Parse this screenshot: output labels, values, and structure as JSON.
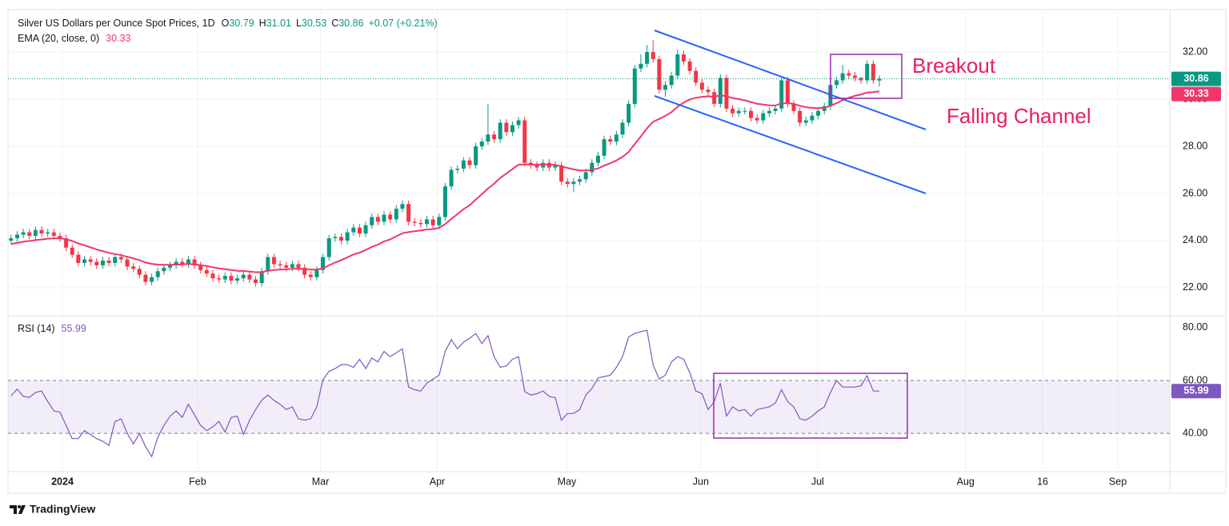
{
  "chart_data": {
    "type": "candlestick",
    "title": "Silver US Dollars per Ounce Spot Prices, 1D",
    "ohlc_letters": [
      "O",
      "H",
      "L",
      "C"
    ],
    "change": "+0.07 (+0.21%)",
    "up_color": "#089981",
    "down_color": "#f23645",
    "grid": true,
    "xlim": [
      -0.5,
      189.5
    ],
    "xticks": [
      {
        "value": 8.4,
        "label": "2024"
      },
      {
        "value": 30.5,
        "label": "Feb"
      },
      {
        "value": 50.6,
        "label": "Mar"
      },
      {
        "value": 69.7,
        "label": "Apr"
      },
      {
        "value": 90.9,
        "label": "May"
      },
      {
        "value": 112.8,
        "label": "Jun"
      },
      {
        "value": 131.9,
        "label": "Jul"
      },
      {
        "value": 156.1,
        "label": "Aug"
      },
      {
        "value": 168.7,
        "label": "16"
      },
      {
        "value": 181,
        "label": "Sep"
      }
    ],
    "ylim": [
      20.81,
      33.8
    ],
    "yticks": [
      {
        "value": 22,
        "label": "22.00"
      },
      {
        "value": 24,
        "label": "24.00"
      },
      {
        "value": 26,
        "label": "26.00"
      },
      {
        "value": 28,
        "label": "28.00"
      },
      {
        "value": 30,
        "label": "30.00"
      },
      {
        "value": 32,
        "label": "32.00"
      }
    ],
    "open": [
      24.0,
      24.1,
      24.25,
      24.35,
      24.2,
      24.45,
      24.3,
      24.35,
      24.2,
      24.1,
      23.7,
      23.4,
      23.05,
      23.2,
      23.1,
      22.95,
      23.15,
      23.05,
      23.3,
      23.2,
      22.9,
      22.8,
      22.55,
      22.25,
      22.45,
      22.7,
      22.85,
      22.95,
      23.1,
      23.0,
      23.2,
      22.95,
      22.75,
      22.6,
      22.4,
      22.35,
      22.5,
      22.3,
      22.4,
      22.55,
      22.35,
      22.2,
      22.7,
      23.3,
      23.0,
      22.95,
      22.85,
      23.0,
      22.85,
      22.55,
      22.45,
      22.75,
      23.3,
      24.1,
      24.15,
      24.0,
      24.35,
      24.55,
      24.3,
      24.65,
      25.0,
      24.8,
      25.1,
      24.9,
      25.35,
      25.55,
      24.8,
      24.75,
      24.7,
      24.9,
      24.65,
      25.0,
      26.3,
      27.0,
      27.05,
      27.4,
      27.2,
      28.0,
      28.2,
      28.5,
      28.3,
      29.0,
      28.6,
      28.9,
      29.1,
      27.3,
      27.2,
      27.1,
      27.3,
      27.1,
      27.2,
      26.5,
      26.4,
      26.5,
      26.6,
      26.9,
      27.3,
      27.6,
      28.3,
      28.2,
      28.5,
      29.0,
      29.8,
      31.3,
      31.5,
      32.0,
      31.7,
      30.4,
      30.6,
      31.0,
      31.9,
      31.6,
      31.2,
      30.7,
      30.4,
      30.3,
      29.8,
      30.9,
      29.6,
      29.4,
      29.5,
      29.5,
      29.2,
      29.1,
      29.4,
      29.5,
      29.6,
      30.8,
      29.8,
      29.5,
      29.0,
      29.1,
      29.3,
      29.5,
      29.7,
      30.6,
      30.8,
      31.1,
      31.0,
      30.9,
      30.8,
      31.5,
      30.79
    ],
    "high": [
      24.25,
      24.4,
      24.5,
      24.5,
      24.6,
      24.6,
      24.5,
      24.5,
      24.35,
      24.25,
      23.85,
      23.55,
      23.35,
      23.35,
      23.25,
      23.3,
      23.3,
      23.45,
      23.45,
      23.35,
      23.05,
      22.95,
      22.7,
      22.6,
      22.85,
      23.0,
      23.1,
      23.25,
      23.25,
      23.35,
      23.35,
      23.1,
      22.9,
      22.75,
      22.55,
      22.65,
      22.65,
      22.55,
      22.7,
      22.7,
      22.5,
      22.85,
      23.45,
      23.45,
      23.15,
      23.1,
      23.15,
      23.15,
      23.0,
      22.7,
      22.9,
      23.45,
      24.25,
      24.3,
      24.3,
      24.5,
      24.7,
      24.7,
      24.8,
      25.15,
      25.15,
      25.25,
      25.25,
      25.5,
      25.7,
      25.7,
      24.95,
      24.9,
      25.05,
      25.05,
      25.15,
      26.45,
      27.15,
      27.2,
      27.55,
      27.55,
      28.15,
      28.35,
      29.8,
      28.65,
      29.15,
      29.15,
      29.05,
      29.25,
      29.25,
      27.45,
      27.35,
      27.45,
      27.45,
      27.35,
      27.35,
      26.65,
      26.65,
      26.75,
      27.05,
      27.45,
      27.75,
      28.45,
      28.45,
      28.65,
      29.15,
      29.95,
      31.45,
      31.9,
      32.3,
      32.5,
      31.85,
      30.75,
      31.15,
      32.1,
      32.05,
      31.75,
      31.35,
      30.85,
      30.55,
      30.45,
      31.05,
      31.05,
      29.75,
      29.65,
      29.65,
      29.65,
      29.35,
      29.55,
      29.65,
      29.75,
      30.95,
      30.95,
      29.95,
      29.65,
      29.25,
      29.45,
      29.65,
      29.85,
      30.75,
      30.95,
      31.45,
      31.25,
      31.15,
      30.95,
      31.65,
      31.65,
      31.01
    ],
    "low": [
      23.85,
      23.95,
      24.1,
      24.05,
      24.05,
      24.15,
      24.15,
      24.05,
      23.95,
      23.55,
      23.25,
      22.9,
      22.9,
      22.95,
      22.8,
      22.8,
      22.9,
      22.9,
      23.05,
      22.75,
      22.65,
      22.4,
      22.1,
      22.1,
      22.3,
      22.55,
      22.7,
      22.8,
      22.85,
      22.85,
      22.8,
      22.6,
      22.45,
      22.25,
      22.2,
      22.2,
      22.15,
      22.15,
      22.25,
      22.2,
      22.05,
      22.05,
      22.55,
      22.85,
      22.8,
      22.7,
      22.7,
      22.7,
      22.4,
      22.3,
      22.3,
      22.6,
      23.15,
      23.95,
      23.85,
      23.85,
      24.2,
      24.15,
      24.15,
      24.5,
      24.65,
      24.65,
      24.75,
      24.75,
      25.2,
      24.65,
      24.6,
      24.55,
      24.55,
      24.5,
      24.5,
      24.85,
      26.15,
      26.85,
      26.9,
      27.05,
      27.05,
      27.85,
      28.05,
      28.15,
      28.15,
      28.45,
      28.45,
      28.75,
      27.15,
      27.05,
      26.95,
      26.95,
      26.95,
      26.95,
      26.35,
      26.25,
      26.05,
      26.35,
      26.45,
      26.75,
      27.15,
      27.45,
      28.05,
      28.05,
      28.35,
      28.85,
      29.65,
      31.15,
      31.35,
      31.55,
      30.25,
      30.1,
      30.45,
      30.85,
      31.45,
      31.05,
      30.55,
      30.25,
      30.15,
      29.65,
      29.65,
      29.45,
      29.25,
      29.25,
      29.35,
      29.05,
      28.95,
      28.95,
      29.25,
      29.35,
      29.45,
      29.65,
      29.35,
      28.85,
      28.85,
      28.95,
      29.15,
      29.35,
      29.55,
      30.45,
      30.65,
      30.85,
      30.75,
      30.65,
      30.65,
      30.65,
      30.53
    ],
    "close": [
      24.1,
      24.25,
      24.35,
      24.2,
      24.45,
      24.3,
      24.35,
      24.2,
      24.1,
      23.7,
      23.4,
      23.05,
      23.2,
      23.1,
      22.95,
      23.15,
      23.05,
      23.3,
      23.2,
      22.9,
      22.8,
      22.55,
      22.25,
      22.45,
      22.7,
      22.85,
      22.95,
      23.1,
      23.0,
      23.2,
      22.95,
      22.75,
      22.6,
      22.4,
      22.35,
      22.5,
      22.3,
      22.4,
      22.55,
      22.35,
      22.2,
      22.7,
      23.3,
      23.0,
      22.95,
      22.85,
      23.0,
      22.85,
      22.55,
      22.45,
      22.75,
      23.3,
      24.1,
      24.15,
      24.0,
      24.35,
      24.55,
      24.3,
      24.65,
      25.0,
      24.8,
      25.1,
      24.9,
      25.35,
      25.55,
      24.8,
      24.75,
      24.7,
      24.9,
      24.65,
      25.0,
      26.3,
      27.0,
      27.05,
      27.4,
      27.2,
      28.0,
      28.2,
      28.5,
      28.3,
      29.0,
      28.6,
      28.9,
      29.1,
      27.3,
      27.2,
      27.1,
      27.3,
      27.1,
      27.2,
      26.5,
      26.4,
      26.5,
      26.6,
      26.9,
      27.3,
      27.6,
      28.3,
      28.2,
      28.5,
      29.0,
      29.8,
      31.3,
      31.5,
      32.0,
      31.7,
      30.4,
      30.6,
      31.0,
      31.9,
      31.6,
      31.2,
      30.7,
      30.4,
      30.3,
      29.8,
      30.9,
      29.6,
      29.4,
      29.5,
      29.5,
      29.2,
      29.1,
      29.4,
      29.5,
      29.6,
      30.8,
      29.8,
      29.5,
      29.0,
      29.1,
      29.3,
      29.5,
      29.7,
      30.6,
      30.8,
      31.1,
      31.0,
      30.9,
      30.8,
      31.5,
      30.8,
      30.86
    ],
    "ema": {
      "name": "EMA (20, close, 0)",
      "color": "#f23669",
      "values": [
        23.85,
        23.9,
        23.95,
        23.98,
        24.02,
        24.05,
        24.08,
        24.09,
        24.1,
        24.06,
        23.98,
        23.88,
        23.8,
        23.71,
        23.62,
        23.55,
        23.48,
        23.43,
        23.38,
        23.31,
        23.25,
        23.17,
        23.07,
        23.01,
        22.98,
        22.97,
        22.97,
        22.98,
        22.99,
        23.01,
        22.99,
        22.96,
        22.92,
        22.87,
        22.82,
        22.79,
        22.75,
        22.72,
        22.71,
        22.69,
        22.66,
        22.66,
        22.72,
        22.75,
        22.77,
        22.78,
        22.8,
        22.81,
        22.79,
        22.77,
        22.77,
        22.82,
        22.95,
        23.07,
        23.17,
        23.29,
        23.41,
        23.49,
        23.6,
        23.73,
        23.83,
        23.96,
        24.05,
        24.18,
        24.31,
        24.36,
        24.4,
        24.43,
        24.47,
        24.49,
        24.54,
        24.7,
        24.92,
        25.12,
        25.33,
        25.5,
        25.74,
        25.97,
        26.21,
        26.41,
        26.66,
        26.84,
        27.03,
        27.22,
        27.23,
        27.23,
        27.22,
        27.23,
        27.22,
        27.21,
        27.15,
        27.08,
        27.02,
        26.98,
        26.97,
        27.0,
        27.06,
        27.18,
        27.28,
        27.4,
        27.55,
        27.76,
        28.1,
        28.42,
        28.76,
        29.04,
        29.16,
        29.29,
        29.45,
        29.68,
        29.86,
        29.99,
        30.06,
        30.1,
        30.12,
        30.1,
        30.17,
        30.12,
        30.05,
        30.0,
        29.95,
        29.88,
        29.8,
        29.77,
        29.74,
        29.73,
        29.83,
        29.83,
        29.8,
        29.72,
        29.66,
        29.63,
        29.62,
        29.63,
        29.72,
        29.83,
        29.96,
        30.06,
        30.14,
        30.2,
        30.28,
        30.3,
        30.33
      ]
    },
    "rsi": {
      "name": "RSI (14)",
      "color": "#7e57c2",
      "ylim": [
        25.5,
        84.2
      ],
      "yticks": [
        {
          "value": 40,
          "label": "40.00"
        },
        {
          "value": 60,
          "label": "60.00"
        },
        {
          "value": 80,
          "label": "80.00"
        }
      ],
      "band": [
        40,
        60
      ],
      "values": [
        54.2,
        56.7,
        54,
        53.6,
        55.5,
        56,
        52,
        48.5,
        48,
        43,
        38,
        38,
        41,
        39.5,
        38,
        37,
        35.5,
        44.5,
        45.5,
        40,
        36,
        40,
        35,
        31.2,
        38.5,
        43,
        46.5,
        48.5,
        46,
        51,
        47,
        43,
        41,
        42.5,
        44.5,
        40.5,
        46,
        46.5,
        39.5,
        45,
        49,
        52.5,
        54.5,
        52.5,
        51,
        49,
        50,
        45.5,
        45,
        45.5,
        50,
        60.3,
        63.5,
        64.5,
        66,
        66,
        65,
        68,
        64.5,
        68.5,
        67,
        71,
        69,
        70.5,
        72,
        57.5,
        56.5,
        56,
        59,
        60.5,
        62,
        71,
        75.5,
        72,
        74.5,
        76,
        77.8,
        74,
        77,
        69,
        65,
        65.5,
        68,
        69,
        55.8,
        54.5,
        55,
        56,
        54,
        53.5,
        45,
        47.5,
        47.5,
        49,
        54.5,
        57,
        61,
        61.5,
        62,
        65,
        69,
        76.5,
        77.8,
        78.5,
        79,
        66,
        60.5,
        62,
        67,
        69,
        68,
        63,
        56,
        55,
        49,
        52,
        59,
        46.5,
        50,
        48.5,
        49,
        46.5,
        49,
        49.5,
        50,
        51.5,
        56.5,
        52,
        50,
        45.5,
        45,
        46.5,
        48.5,
        50,
        55.5,
        60,
        57.5,
        57.5,
        57.5,
        58,
        61.8,
        56,
        55.99
      ]
    },
    "annotations": [
      "Breakout",
      "Falling Channel"
    ]
  },
  "footer": {
    "logo_text": "TradingView"
  }
}
